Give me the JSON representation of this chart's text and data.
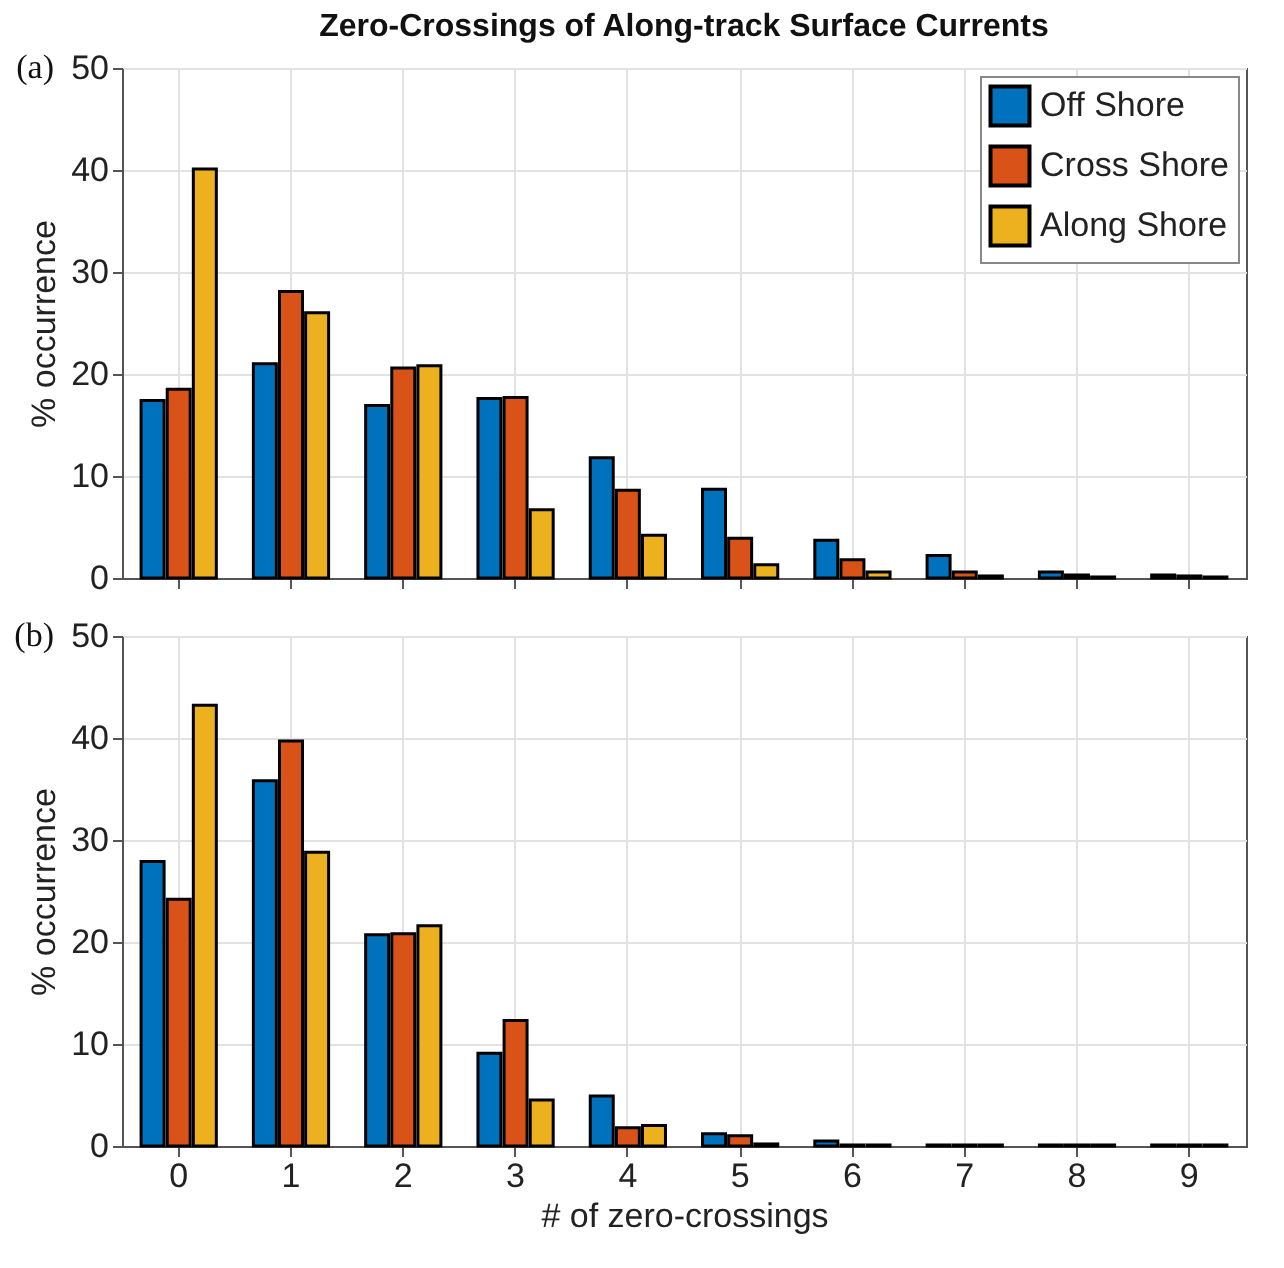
{
  "chart_data": [
    {
      "type": "bar",
      "title": "Zero-Crossings of Along-track Surface Currents",
      "ylabel": "% occurrence",
      "annotations": [
        "(a)"
      ],
      "categories": [
        "0",
        "1",
        "2",
        "3",
        "4",
        "5",
        "6",
        "7",
        "8",
        "9"
      ],
      "series": [
        {
          "name": "Off Shore",
          "color": "#0072bd",
          "values": [
            17.4,
            21.0,
            16.9,
            17.6,
            11.8,
            8.7,
            3.7,
            2.2,
            0.6,
            0.3
          ]
        },
        {
          "name": "Cross Shore",
          "color": "#d95319",
          "values": [
            18.5,
            28.1,
            20.6,
            17.7,
            8.6,
            3.9,
            1.8,
            0.6,
            0.3,
            0.2
          ]
        },
        {
          "name": "Along Shore",
          "color": "#edb120",
          "values": [
            40.1,
            26.0,
            20.8,
            6.7,
            4.2,
            1.3,
            0.6,
            0.2,
            0.1,
            0.1
          ]
        }
      ],
      "ylim": [
        0,
        50
      ],
      "yticks": [
        0,
        10,
        20,
        30,
        40,
        50
      ],
      "grid": true,
      "legend": "top right",
      "tick_labels": "y"
    },
    {
      "type": "bar",
      "xlabel": "# of zero-crossings",
      "ylabel": "% occurrence",
      "annotations": [
        "(b)"
      ],
      "categories": [
        "0",
        "1",
        "2",
        "3",
        "4",
        "5",
        "6",
        "7",
        "8",
        "9"
      ],
      "series": [
        {
          "name": "Off Shore",
          "color": "#0072bd",
          "values": [
            27.9,
            35.8,
            20.7,
            9.1,
            4.9,
            1.2,
            0.5,
            0.1,
            0.1,
            0.1
          ]
        },
        {
          "name": "Cross Shore",
          "color": "#d95319",
          "values": [
            24.2,
            39.7,
            20.8,
            12.3,
            1.8,
            1.0,
            0.1,
            0.1,
            0.1,
            0.1
          ]
        },
        {
          "name": "Along Shore",
          "color": "#edb120",
          "values": [
            43.2,
            28.8,
            21.6,
            4.5,
            2.0,
            0.2,
            0.1,
            0.1,
            0.1,
            0.1
          ]
        }
      ],
      "ylim": [
        0,
        50
      ],
      "yticks": [
        0,
        10,
        20,
        30,
        40,
        50
      ],
      "grid": true
    }
  ]
}
